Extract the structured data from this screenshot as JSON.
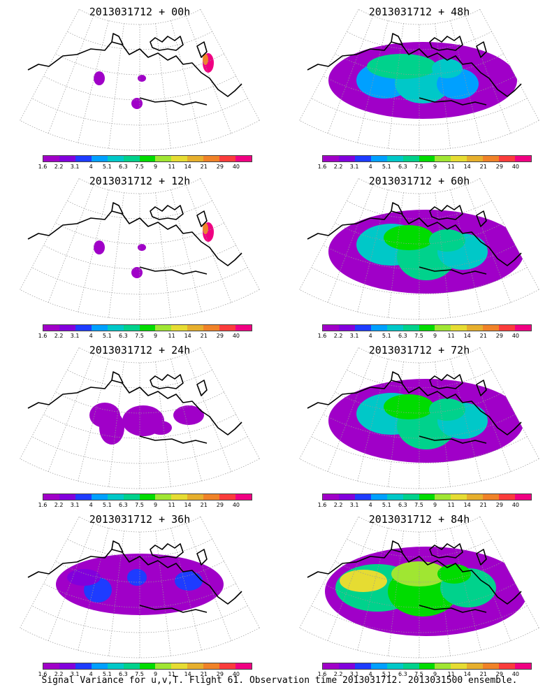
{
  "panels": [
    {
      "title": "2013031712 + 00h",
      "level": 0
    },
    {
      "title": "2013031712 + 48h",
      "level": 3
    },
    {
      "title": "2013031712 + 12h",
      "level": 0
    },
    {
      "title": "2013031712 + 60h",
      "level": 4
    },
    {
      "title": "2013031712 + 24h",
      "level": 1
    },
    {
      "title": "2013031712 + 72h",
      "level": 4
    },
    {
      "title": "2013031712 + 36h",
      "level": 2
    },
    {
      "title": "2013031712 + 84h",
      "level": 5
    }
  ],
  "colorbar": {
    "labels": [
      "1.6",
      "2.2",
      "3.1",
      "4",
      "5.1",
      "6.3",
      "7.5",
      "9",
      "11",
      "14",
      "21",
      "29",
      "40"
    ],
    "colors": [
      "#a000c8",
      "#8200dc",
      "#1e3cff",
      "#00a0ff",
      "#00c8c8",
      "#00d28c",
      "#00dc00",
      "#a0e632",
      "#e6dc32",
      "#e6af2d",
      "#f08228",
      "#fa3c3c",
      "#f00082"
    ]
  },
  "footer": "Signal Variance for u,v,T. Flight 61. Observation time 2013031712. 2013031500 ensemble."
}
